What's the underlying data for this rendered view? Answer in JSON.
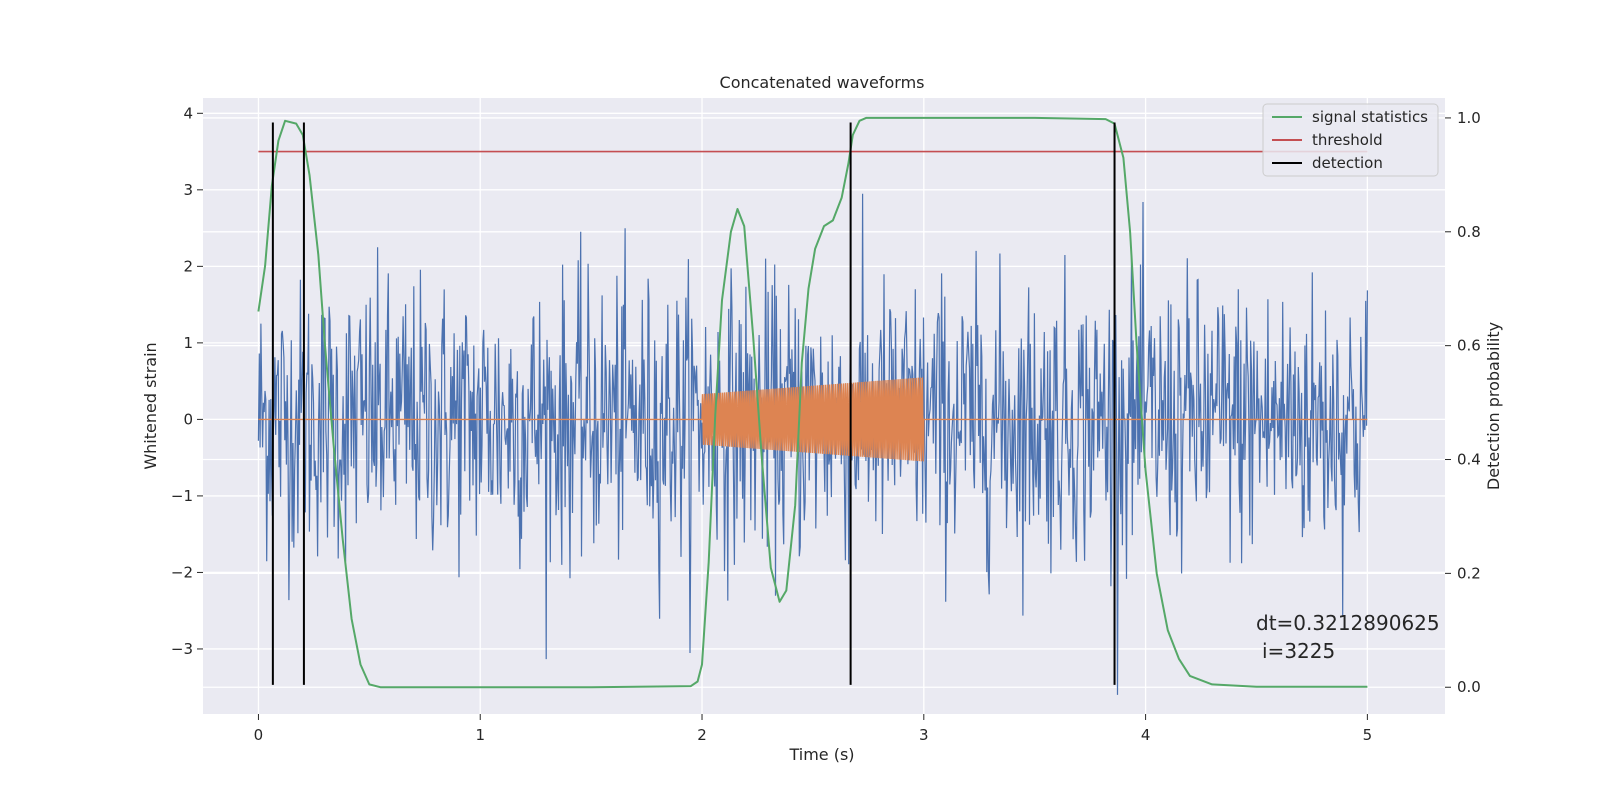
{
  "chart_data": {
    "type": "line",
    "title": "Concatenated waveforms",
    "xlabel": "Time (s)",
    "ylabel": "Whitened strain",
    "y2label": "Detection probability",
    "xlim": [
      -0.25,
      5.35
    ],
    "ylim": [
      -3.85,
      4.2
    ],
    "y2lim": [
      -0.047,
      1.035
    ],
    "x_ticks": [
      0,
      1,
      2,
      3,
      4,
      5
    ],
    "y_ticks": [
      -3,
      -2,
      -1,
      0,
      1,
      2,
      3,
      4
    ],
    "y2_ticks": [
      0.0,
      0.2,
      0.4,
      0.6,
      0.8,
      1.0
    ],
    "grid": true,
    "legend_position": "top-right",
    "legend": [
      "signal statistics",
      "threshold",
      "detection"
    ],
    "annotation": {
      "line1": "dt=0.3212890625",
      "line2": "i=3225",
      "x": 4.5,
      "y": -3.15
    },
    "threshold": {
      "name": "threshold",
      "y": 3.5,
      "x": [
        0,
        5
      ]
    },
    "detections": {
      "name": "detection",
      "x": [
        0.065,
        0.205,
        2.67,
        3.86
      ],
      "y_range": [
        -3.47,
        3.88
      ]
    },
    "signal_statistics": {
      "name": "signal statistics",
      "x": [
        0,
        0.03,
        0.06,
        0.09,
        0.12,
        0.17,
        0.2,
        0.23,
        0.27,
        0.3,
        0.34,
        0.38,
        0.42,
        0.46,
        0.5,
        0.55,
        0.7,
        1.0,
        1.5,
        1.95,
        1.98,
        2.0,
        2.03,
        2.06,
        2.09,
        2.13,
        2.16,
        2.19,
        2.23,
        2.27,
        2.31,
        2.35,
        2.38,
        2.42,
        2.45,
        2.48,
        2.51,
        2.55,
        2.59,
        2.63,
        2.66,
        2.68,
        2.71,
        2.74,
        2.8,
        3.0,
        3.5,
        3.82,
        3.86,
        3.9,
        3.93,
        3.96,
        4.0,
        4.05,
        4.1,
        4.15,
        4.2,
        4.3,
        4.5,
        5.0
      ],
      "y": [
        0.66,
        0.74,
        0.88,
        0.96,
        0.995,
        0.99,
        0.97,
        0.9,
        0.76,
        0.6,
        0.42,
        0.26,
        0.12,
        0.04,
        0.005,
        0.0,
        0.0,
        0.0,
        0.0,
        0.002,
        0.01,
        0.04,
        0.22,
        0.48,
        0.68,
        0.8,
        0.84,
        0.81,
        0.62,
        0.4,
        0.21,
        0.15,
        0.17,
        0.32,
        0.57,
        0.7,
        0.77,
        0.81,
        0.82,
        0.86,
        0.92,
        0.97,
        0.995,
        1.0,
        1.0,
        1.0,
        1.0,
        0.998,
        0.99,
        0.93,
        0.8,
        0.6,
        0.38,
        0.2,
        0.1,
        0.05,
        0.02,
        0.005,
        0.001,
        0.001
      ]
    },
    "strain_noise": {
      "name": "",
      "x_range": [
        0,
        5
      ],
      "samples": 1350,
      "envelope_typical": 1.2,
      "envelope_peak": 3.6
    },
    "injected_signal": {
      "name": "",
      "x": [
        0,
        2.0,
        2.0,
        3.0,
        3.0,
        5
      ],
      "cycles": 110,
      "amplitude_start": 0.33,
      "amplitude_end": 0.55
    },
    "colors": {
      "strain": "#4c72b0",
      "injection": "#dd8452",
      "signal_statistics": "#55a868",
      "threshold": "#c44e52",
      "detection": "#000000",
      "background": "#eaeaf2",
      "grid": "#ffffff"
    }
  }
}
